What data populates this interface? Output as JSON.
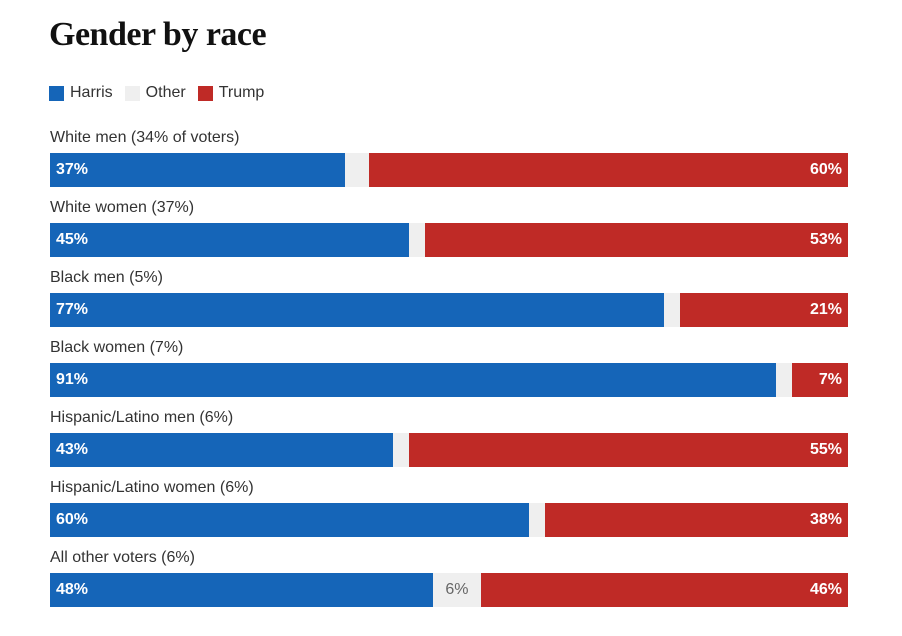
{
  "chart_data": {
    "type": "bar",
    "orientation": "horizontal",
    "stacked": true,
    "normalized": true,
    "title": "Gender by race",
    "legend": {
      "position": "top-left",
      "items": [
        {
          "name": "Harris",
          "color": "#1565b8"
        },
        {
          "name": "Other",
          "color": "#efefef"
        },
        {
          "name": "Trump",
          "color": "#bf2a26"
        }
      ]
    },
    "categories": [
      "White men (34% of voters)",
      "White women (37%)",
      "Black men (5%)",
      "Black women (7%)",
      "Hispanic/Latino men (6%)",
      "Hispanic/Latino women (6%)",
      "All other voters (6%)"
    ],
    "series": [
      {
        "name": "Harris",
        "values": [
          37,
          45,
          77,
          91,
          43,
          60,
          48
        ],
        "labels": [
          "37%",
          "45%",
          "77%",
          "91%",
          "43%",
          "60%",
          "48%"
        ]
      },
      {
        "name": "Other",
        "values": [
          3,
          2,
          2,
          2,
          2,
          2,
          6
        ],
        "labels": [
          "",
          "",
          "",
          "",
          "",
          "",
          "6%"
        ]
      },
      {
        "name": "Trump",
        "values": [
          60,
          53,
          21,
          7,
          55,
          38,
          46
        ],
        "labels": [
          "60%",
          "53%",
          "21%",
          "7%",
          "55%",
          "38%",
          "46%"
        ]
      }
    ],
    "xlim": [
      0,
      100
    ],
    "grid": false
  }
}
